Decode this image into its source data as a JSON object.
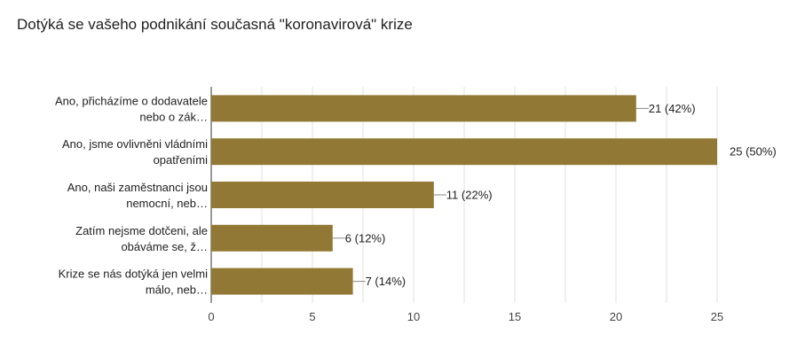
{
  "chart_data": {
    "type": "bar",
    "orientation": "horizontal",
    "title": "Dotýká se vašeho podnikání současná \"koronavirová\" krize",
    "categories": [
      [
        "Ano, přicházíme o dodavatele",
        "nebo o zák…"
      ],
      [
        "Ano, jsme ovlivněni vládními",
        "opatřeními"
      ],
      [
        "Ano, naši zaměstnanci jsou",
        "nemocní, neb…"
      ],
      [
        "Zatím nejsme dotčeni, ale",
        "obáváme se, ž…"
      ],
      [
        "Krize se nás dotýká jen velmi",
        "málo, neb…"
      ]
    ],
    "values": [
      21,
      25,
      11,
      6,
      7
    ],
    "value_labels": [
      "21 (42%)",
      "25 (50%)",
      "11 (22%)",
      "6 (12%)",
      "7 (14%)"
    ],
    "xlim": [
      0,
      25
    ],
    "xticks": [
      0,
      5,
      10,
      15,
      20,
      25
    ],
    "xtick_labels": [
      "0",
      "5",
      "10",
      "15",
      "20",
      "25"
    ],
    "grid": true,
    "bar_color": "#917935",
    "grid_color": "#e0e0e0",
    "axis_color": "#333333",
    "label_line_color": "#888888"
  }
}
